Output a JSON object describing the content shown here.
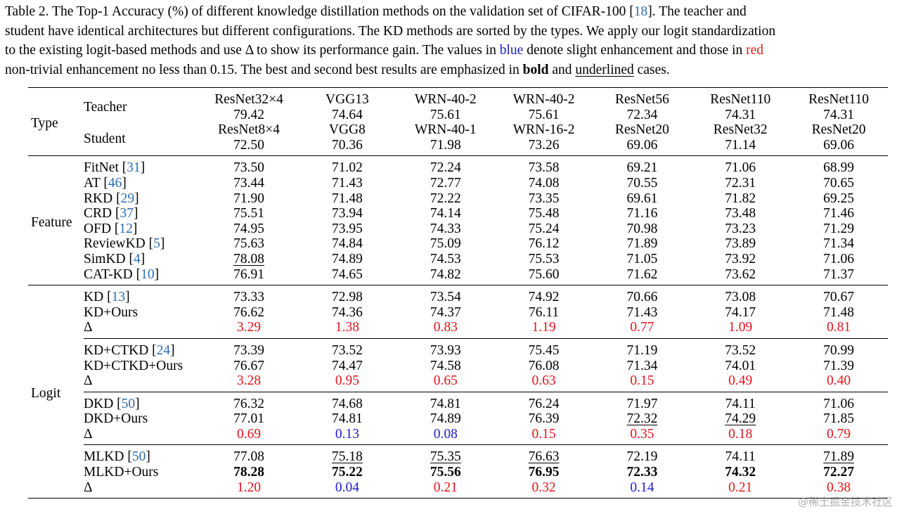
{
  "caption": {
    "line1": {
      "a": "Table 2.  The Top-1 Accuracy (%) of different knowledge distillation methods on the validation set of CIFAR-100 [",
      "cite": "18",
      "b": "].  The teacher and"
    },
    "line2": "student have identical architectures but different configurations. The KD methods are sorted by the types. We apply our logit standardization",
    "line3": {
      "a": "to the existing logit-based methods and use Δ to show its performance gain. The values in ",
      "blue": "blue",
      "b": " denote slight enhancement and those in ",
      "red": "red"
    },
    "line4": {
      "a": "non-trivial enhancement no less than 0.15. The best and second best results are emphasized in ",
      "bold": "bold",
      "b": " and ",
      "underlined": "underlined",
      "c": " cases."
    }
  },
  "header": {
    "type_label": "Type",
    "teacher_label": "Teacher",
    "student_label": "Student",
    "columns": [
      {
        "teacher": "ResNet32×4",
        "teacher_acc": "79.42",
        "student": "ResNet8×4",
        "student_acc": "72.50"
      },
      {
        "teacher": "VGG13",
        "teacher_acc": "74.64",
        "student": "VGG8",
        "student_acc": "70.36"
      },
      {
        "teacher": "WRN-40-2",
        "teacher_acc": "75.61",
        "student": "WRN-40-1",
        "student_acc": "71.98"
      },
      {
        "teacher": "WRN-40-2",
        "teacher_acc": "75.61",
        "student": "WRN-16-2",
        "student_acc": "73.26"
      },
      {
        "teacher": "ResNet56",
        "teacher_acc": "72.34",
        "student": "ResNet20",
        "student_acc": "69.06"
      },
      {
        "teacher": "ResNet110",
        "teacher_acc": "74.31",
        "student": "ResNet32",
        "student_acc": "71.14"
      },
      {
        "teacher": "ResNet110",
        "teacher_acc": "74.31",
        "student": "ResNet20",
        "student_acc": "69.06"
      }
    ]
  },
  "feature": {
    "label": "Feature",
    "rows": [
      {
        "name": "FitNet ",
        "cite": "31",
        "values": [
          "73.50",
          "71.02",
          "72.24",
          "73.58",
          "69.21",
          "71.06",
          "68.99"
        ]
      },
      {
        "name": "AT ",
        "cite": "46",
        "values": [
          "73.44",
          "71.43",
          "72.77",
          "74.08",
          "70.55",
          "72.31",
          "70.65"
        ]
      },
      {
        "name": "RKD ",
        "cite": "29",
        "values": [
          "71.90",
          "71.48",
          "72.22",
          "73.35",
          "69.61",
          "71.82",
          "69.25"
        ]
      },
      {
        "name": "CRD ",
        "cite": "37",
        "values": [
          "75.51",
          "73.94",
          "74.14",
          "75.48",
          "71.16",
          "73.48",
          "71.46"
        ]
      },
      {
        "name": "OFD ",
        "cite": "12",
        "values": [
          "74.95",
          "73.95",
          "74.33",
          "75.24",
          "70.98",
          "73.23",
          "71.29"
        ]
      },
      {
        "name": "ReviewKD ",
        "cite": "5",
        "values": [
          "75.63",
          "74.84",
          "75.09",
          "76.12",
          "71.89",
          "73.89",
          "71.34"
        ]
      },
      {
        "name": "SimKD ",
        "cite": "4",
        "values": [
          "78.08",
          "74.89",
          "74.53",
          "75.53",
          "71.05",
          "73.92",
          "71.06"
        ],
        "underline": [
          0
        ]
      },
      {
        "name": "CAT-KD ",
        "cite": "10",
        "values": [
          "76.91",
          "74.65",
          "74.82",
          "75.60",
          "71.62",
          "73.62",
          "71.37"
        ]
      }
    ]
  },
  "logit": {
    "label": "Logit",
    "groups": [
      {
        "base": {
          "name": "KD ",
          "cite": "13",
          "values": [
            "73.33",
            "72.98",
            "73.54",
            "74.92",
            "70.66",
            "73.08",
            "70.67"
          ]
        },
        "ours": {
          "name": "KD+Ours",
          "values": [
            "76.62",
            "74.36",
            "74.37",
            "76.11",
            "71.43",
            "74.17",
            "71.48"
          ]
        },
        "delta": {
          "name": "Δ",
          "values": [
            "3.29",
            "1.38",
            "0.83",
            "1.19",
            "0.77",
            "1.09",
            "0.81"
          ],
          "colors": [
            "red",
            "red",
            "red",
            "red",
            "red",
            "red",
            "red"
          ]
        }
      },
      {
        "base": {
          "name": "KD+CTKD ",
          "cite": "24",
          "values": [
            "73.39",
            "73.52",
            "73.93",
            "75.45",
            "71.19",
            "73.52",
            "70.99"
          ]
        },
        "ours": {
          "name": "KD+CTKD+Ours",
          "values": [
            "76.67",
            "74.47",
            "74.58",
            "76.08",
            "71.34",
            "74.01",
            "71.39"
          ]
        },
        "delta": {
          "name": "Δ",
          "values": [
            "3.28",
            "0.95",
            "0.65",
            "0.63",
            "0.15",
            "0.49",
            "0.40"
          ],
          "colors": [
            "red",
            "red",
            "red",
            "red",
            "red",
            "red",
            "red"
          ]
        }
      },
      {
        "base": {
          "name": "DKD ",
          "cite": "50",
          "values": [
            "76.32",
            "74.68",
            "74.81",
            "76.24",
            "71.97",
            "74.11",
            "71.06"
          ]
        },
        "ours": {
          "name": "DKD+Ours",
          "values": [
            "77.01",
            "74.81",
            "74.89",
            "76.39",
            "72.32",
            "74.29",
            "71.85"
          ],
          "underline": [
            4,
            5
          ]
        },
        "delta": {
          "name": "Δ",
          "values": [
            "0.69",
            "0.13",
            "0.08",
            "0.15",
            "0.35",
            "0.18",
            "0.79"
          ],
          "colors": [
            "red",
            "blue",
            "blue",
            "red",
            "red",
            "red",
            "red"
          ]
        }
      },
      {
        "base": {
          "name": "MLKD ",
          "cite": "50",
          "values": [
            "77.08",
            "75.18",
            "75.35",
            "76.63",
            "72.19",
            "74.11",
            "71.89"
          ],
          "underline": [
            1,
            2,
            3,
            6
          ]
        },
        "ours": {
          "name": "MLKD+Ours",
          "values": [
            "78.28",
            "75.22",
            "75.56",
            "76.95",
            "72.33",
            "74.32",
            "72.27"
          ],
          "bold": [
            0,
            1,
            2,
            3,
            4,
            5,
            6
          ]
        },
        "delta": {
          "name": "Δ",
          "values": [
            "1.20",
            "0.04",
            "0.21",
            "0.32",
            "0.14",
            "0.21",
            "0.38"
          ],
          "colors": [
            "red",
            "blue",
            "red",
            "red",
            "blue",
            "red",
            "red"
          ]
        }
      }
    ]
  },
  "watermark": "@稀土掘金技术社区",
  "colors": {
    "red": "#e5141b",
    "blue": "#1c1ccf",
    "cite": "#2b6cb0"
  }
}
